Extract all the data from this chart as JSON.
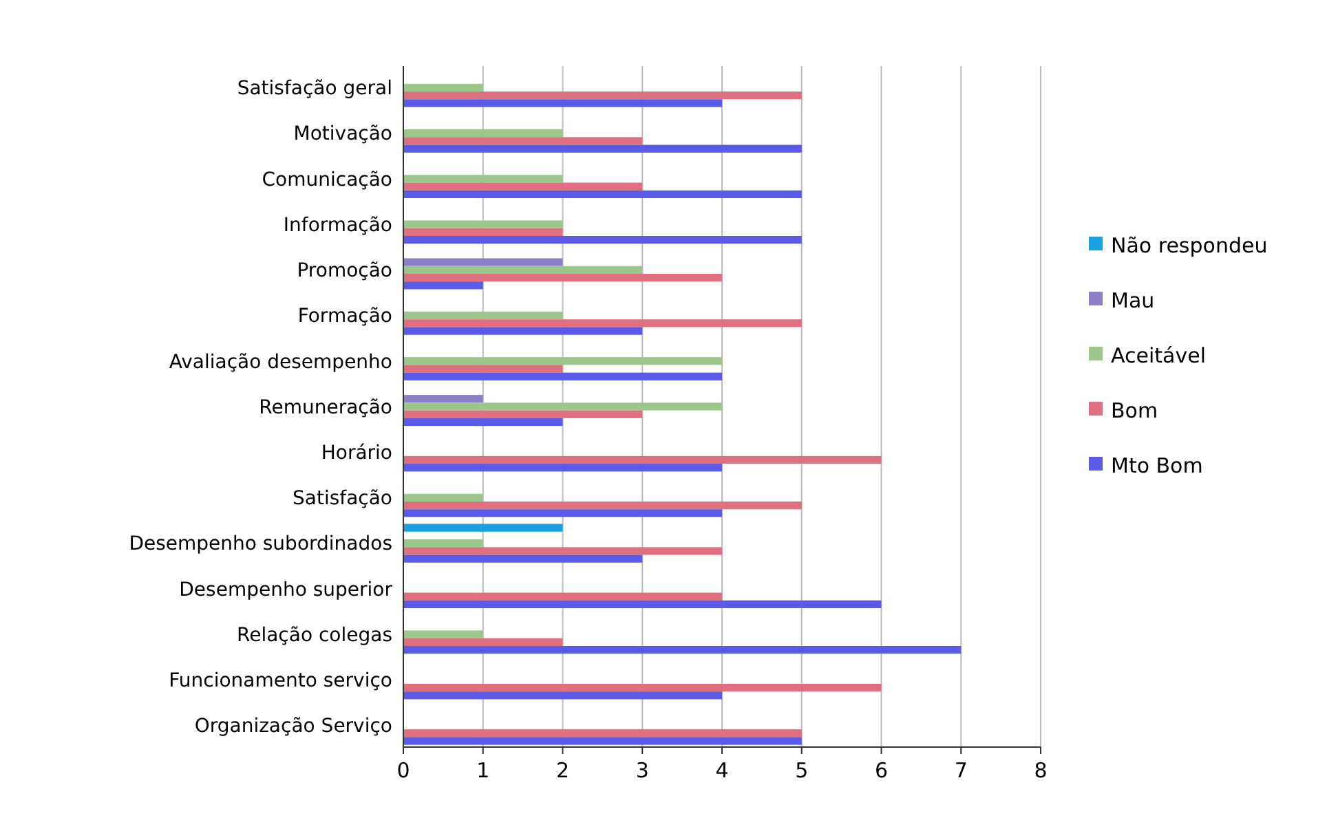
{
  "chart_data": {
    "type": "bar",
    "orientation": "horizontal",
    "categories": [
      "Satisfação geral",
      "Motivação",
      "Comunicação",
      "Informação",
      "Promoção",
      "Formação",
      "Avaliação desempenho",
      "Remuneração",
      "Horário",
      "Satisfação",
      "Desempenho subordinados",
      "Desempenho superior",
      "Relação colegas",
      "Funcionamento serviço",
      "Organização Serviço"
    ],
    "series": [
      {
        "name": "Não respondeu",
        "color": "#1ba1e2",
        "values": [
          0,
          0,
          0,
          0,
          0,
          0,
          0,
          0,
          0,
          0,
          2,
          0,
          0,
          0,
          0
        ]
      },
      {
        "name": "Mau",
        "color": "#8c7fc8",
        "values": [
          0,
          0,
          0,
          0,
          2,
          0,
          0,
          1,
          0,
          0,
          0,
          0,
          0,
          0,
          0
        ]
      },
      {
        "name": "Aceitável",
        "color": "#9bc88a",
        "values": [
          1,
          2,
          2,
          2,
          3,
          2,
          4,
          4,
          0,
          1,
          1,
          0,
          1,
          0,
          0
        ]
      },
      {
        "name": "Bom",
        "color": "#e07080",
        "values": [
          5,
          3,
          3,
          2,
          4,
          5,
          2,
          3,
          6,
          5,
          4,
          4,
          2,
          6,
          5
        ]
      },
      {
        "name": "Mto Bom",
        "color": "#5a5ae8",
        "values": [
          4,
          5,
          5,
          5,
          1,
          3,
          4,
          2,
          4,
          4,
          3,
          6,
          7,
          4,
          5
        ]
      }
    ],
    "xlim": [
      0,
      8
    ],
    "xticks": [
      0,
      1,
      2,
      3,
      4,
      5,
      6,
      7,
      8
    ],
    "grid": "x",
    "legend": "right"
  }
}
